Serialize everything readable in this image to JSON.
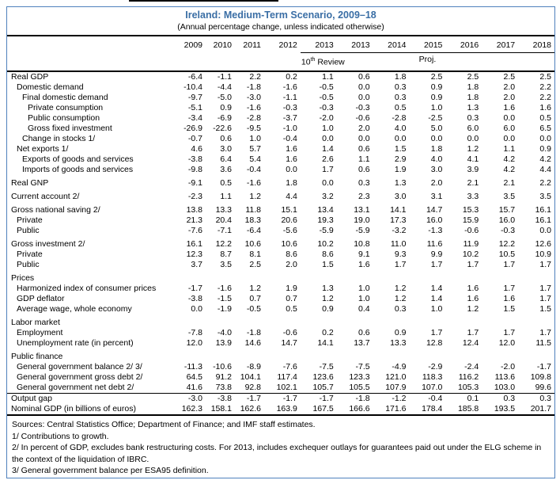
{
  "header": {
    "title": "Ireland: Medium-Term Scenario, 2009–18",
    "subtitle": "(Annual percentage change, unless indicated otherwise)"
  },
  "table": {
    "years": [
      "2009",
      "2010",
      "2011",
      "2012",
      "2013",
      "2013",
      "2014",
      "2015",
      "2016",
      "2017",
      "2018"
    ],
    "subheader": {
      "review_num": "10",
      "review_sup": "th",
      "review_text": " Review",
      "proj": "Proj."
    },
    "rows": [
      {
        "label": "Real GDP",
        "indent": 0,
        "values": [
          "-6.4",
          "-1.1",
          "2.2",
          "0.2",
          "1.1",
          "0.6",
          "1.8",
          "2.5",
          "2.5",
          "2.5",
          "2.5"
        ]
      },
      {
        "label": "Domestic demand",
        "indent": 1,
        "values": [
          "-10.4",
          "-4.4",
          "-1.8",
          "-1.6",
          "-0.5",
          "0.0",
          "0.3",
          "0.9",
          "1.8",
          "2.0",
          "2.2"
        ]
      },
      {
        "label": "Final domestic demand",
        "indent": 2,
        "values": [
          "-9.7",
          "-5.0",
          "-3.0",
          "-1.1",
          "-0.5",
          "0.0",
          "0.3",
          "0.9",
          "1.8",
          "2.0",
          "2.2"
        ]
      },
      {
        "label": "Private consumption",
        "indent": 3,
        "values": [
          "-5.1",
          "0.9",
          "-1.6",
          "-0.3",
          "-0.3",
          "-0.3",
          "0.5",
          "1.0",
          "1.3",
          "1.6",
          "1.6"
        ]
      },
      {
        "label": "Public consumption",
        "indent": 3,
        "values": [
          "-3.4",
          "-6.9",
          "-2.8",
          "-3.7",
          "-2.0",
          "-0.6",
          "-2.8",
          "-2.5",
          "0.3",
          "0.0",
          "0.5"
        ]
      },
      {
        "label": "Gross fixed investment",
        "indent": 3,
        "values": [
          "-26.9",
          "-22.6",
          "-9.5",
          "-1.0",
          "1.0",
          "2.0",
          "4.0",
          "5.0",
          "6.0",
          "6.0",
          "6.5"
        ]
      },
      {
        "label": "Change in stocks 1/",
        "indent": 2,
        "values": [
          "-0.7",
          "0.6",
          "1.0",
          "-0.4",
          "0.0",
          "0.0",
          "0.0",
          "0.0",
          "0.0",
          "0.0",
          "0.0"
        ]
      },
      {
        "label": "Net exports 1/",
        "indent": 1,
        "values": [
          "4.6",
          "3.0",
          "5.7",
          "1.6",
          "1.4",
          "0.6",
          "1.5",
          "1.8",
          "1.2",
          "1.1",
          "0.9"
        ]
      },
      {
        "label": "Exports of goods and services",
        "indent": 2,
        "values": [
          "-3.8",
          "6.4",
          "5.4",
          "1.6",
          "2.6",
          "1.1",
          "2.9",
          "4.0",
          "4.1",
          "4.2",
          "4.2"
        ]
      },
      {
        "label": "Imports of goods and services",
        "indent": 2,
        "values": [
          "-9.8",
          "3.6",
          "-0.4",
          "0.0",
          "1.7",
          "0.6",
          "1.9",
          "3.0",
          "3.9",
          "4.2",
          "4.4"
        ]
      },
      {
        "label": "Real GNP",
        "indent": 0,
        "gap": true,
        "values": [
          "-9.1",
          "0.5",
          "-1.6",
          "1.8",
          "0.0",
          "0.3",
          "1.3",
          "2.0",
          "2.1",
          "2.1",
          "2.2"
        ]
      },
      {
        "label": "Current account 2/",
        "indent": 0,
        "gap": true,
        "values": [
          "-2.3",
          "1.1",
          "1.2",
          "4.4",
          "3.2",
          "2.3",
          "3.0",
          "3.1",
          "3.3",
          "3.5",
          "3.5"
        ]
      },
      {
        "label": "Gross national saving 2/",
        "indent": 0,
        "gap": true,
        "values": [
          "13.8",
          "13.3",
          "11.8",
          "15.1",
          "13.4",
          "13.1",
          "14.1",
          "14.7",
          "15.3",
          "15.7",
          "16.1"
        ]
      },
      {
        "label": "Private",
        "indent": 1,
        "values": [
          "21.3",
          "20.4",
          "18.3",
          "20.6",
          "19.3",
          "19.0",
          "17.3",
          "16.0",
          "15.9",
          "16.0",
          "16.1"
        ]
      },
      {
        "label": "Public",
        "indent": 1,
        "values": [
          "-7.6",
          "-7.1",
          "-6.4",
          "-5.6",
          "-5.9",
          "-5.9",
          "-3.2",
          "-1.3",
          "-0.6",
          "-0.3",
          "0.0"
        ]
      },
      {
        "label": "Gross investment 2/",
        "indent": 0,
        "gap": true,
        "values": [
          "16.1",
          "12.2",
          "10.6",
          "10.6",
          "10.2",
          "10.8",
          "11.0",
          "11.6",
          "11.9",
          "12.2",
          "12.6"
        ]
      },
      {
        "label": "Private",
        "indent": 1,
        "values": [
          "12.3",
          "8.7",
          "8.1",
          "8.6",
          "8.6",
          "9.1",
          "9.3",
          "9.9",
          "10.2",
          "10.5",
          "10.9"
        ]
      },
      {
        "label": "Public",
        "indent": 1,
        "values": [
          "3.7",
          "3.5",
          "2.5",
          "2.0",
          "1.5",
          "1.6",
          "1.7",
          "1.7",
          "1.7",
          "1.7",
          "1.7"
        ]
      },
      {
        "label": "Prices",
        "indent": 0,
        "gap": true,
        "values": []
      },
      {
        "label": "Harmonized index of consumer prices",
        "indent": 1,
        "values": [
          "-1.7",
          "-1.6",
          "1.2",
          "1.9",
          "1.3",
          "1.0",
          "1.2",
          "1.4",
          "1.6",
          "1.7",
          "1.7"
        ]
      },
      {
        "label": "GDP deflator",
        "indent": 1,
        "values": [
          "-3.8",
          "-1.5",
          "0.7",
          "0.7",
          "1.2",
          "1.0",
          "1.2",
          "1.4",
          "1.6",
          "1.6",
          "1.7"
        ]
      },
      {
        "label": "Average wage, whole economy",
        "indent": 1,
        "values": [
          "0.0",
          "-1.9",
          "-0.5",
          "0.5",
          "0.9",
          "0.4",
          "0.3",
          "1.0",
          "1.2",
          "1.5",
          "1.5"
        ]
      },
      {
        "label": "Labor market",
        "indent": 0,
        "gap": true,
        "values": []
      },
      {
        "label": "Employment",
        "indent": 1,
        "values": [
          "-7.8",
          "-4.0",
          "-1.8",
          "-0.6",
          "0.2",
          "0.6",
          "0.9",
          "1.7",
          "1.7",
          "1.7",
          "1.7"
        ]
      },
      {
        "label": "Unemployment rate (in percent)",
        "indent": 1,
        "values": [
          "12.0",
          "13.9",
          "14.6",
          "14.7",
          "14.1",
          "13.7",
          "13.3",
          "12.8",
          "12.4",
          "12.0",
          "11.5"
        ]
      },
      {
        "label": "Public finance",
        "indent": 0,
        "gap": true,
        "values": []
      },
      {
        "label": "General government balance 2/ 3/",
        "indent": 1,
        "values": [
          "-11.3",
          "-10.6",
          "-8.9",
          "-7.6",
          "-7.5",
          "-7.5",
          "-4.9",
          "-2.9",
          "-2.4",
          "-2.0",
          "-1.7"
        ]
      },
      {
        "label": "General government gross debt 2/",
        "indent": 1,
        "values": [
          "64.5",
          "91.2",
          "104.1",
          "117.4",
          "123.6",
          "123.3",
          "121.0",
          "118.3",
          "116.2",
          "113.6",
          "109.8"
        ]
      },
      {
        "label": "General government net debt 2/",
        "indent": 1,
        "values": [
          "41.6",
          "73.8",
          "92.8",
          "102.1",
          "105.7",
          "105.5",
          "107.9",
          "107.0",
          "105.3",
          "103.0",
          "99.6"
        ]
      },
      {
        "label": "Output gap",
        "indent": 0,
        "rule_top": true,
        "values": [
          "-3.0",
          "-3.8",
          "-1.7",
          "-1.7",
          "-1.7",
          "-1.8",
          "-1.2",
          "-0.4",
          "0.1",
          "0.3",
          "0.3"
        ]
      },
      {
        "label": "Nominal GDP (in billions of euros)",
        "indent": 0,
        "values": [
          "162.3",
          "158.1",
          "162.6",
          "163.9",
          "167.5",
          "166.6",
          "171.6",
          "178.4",
          "185.8",
          "193.5",
          "201.7"
        ]
      }
    ]
  },
  "footnotes": [
    "Sources: Central Statistics Office; Department of Finance; and IMF staff estimates.",
    "1/ Contributions to growth.",
    "2/ In percent of GDP, excludes bank restructuring costs. For 2013, includes exchequer outlays for guarantees paid out under the ELG scheme in the context of the liquidation of IBRC.",
    "3/ General government balance per ESA95  definition."
  ],
  "colors": {
    "title_blue": "#3a6ea5",
    "frame_blue": "#4f81bd",
    "rule_black": "#000000"
  }
}
